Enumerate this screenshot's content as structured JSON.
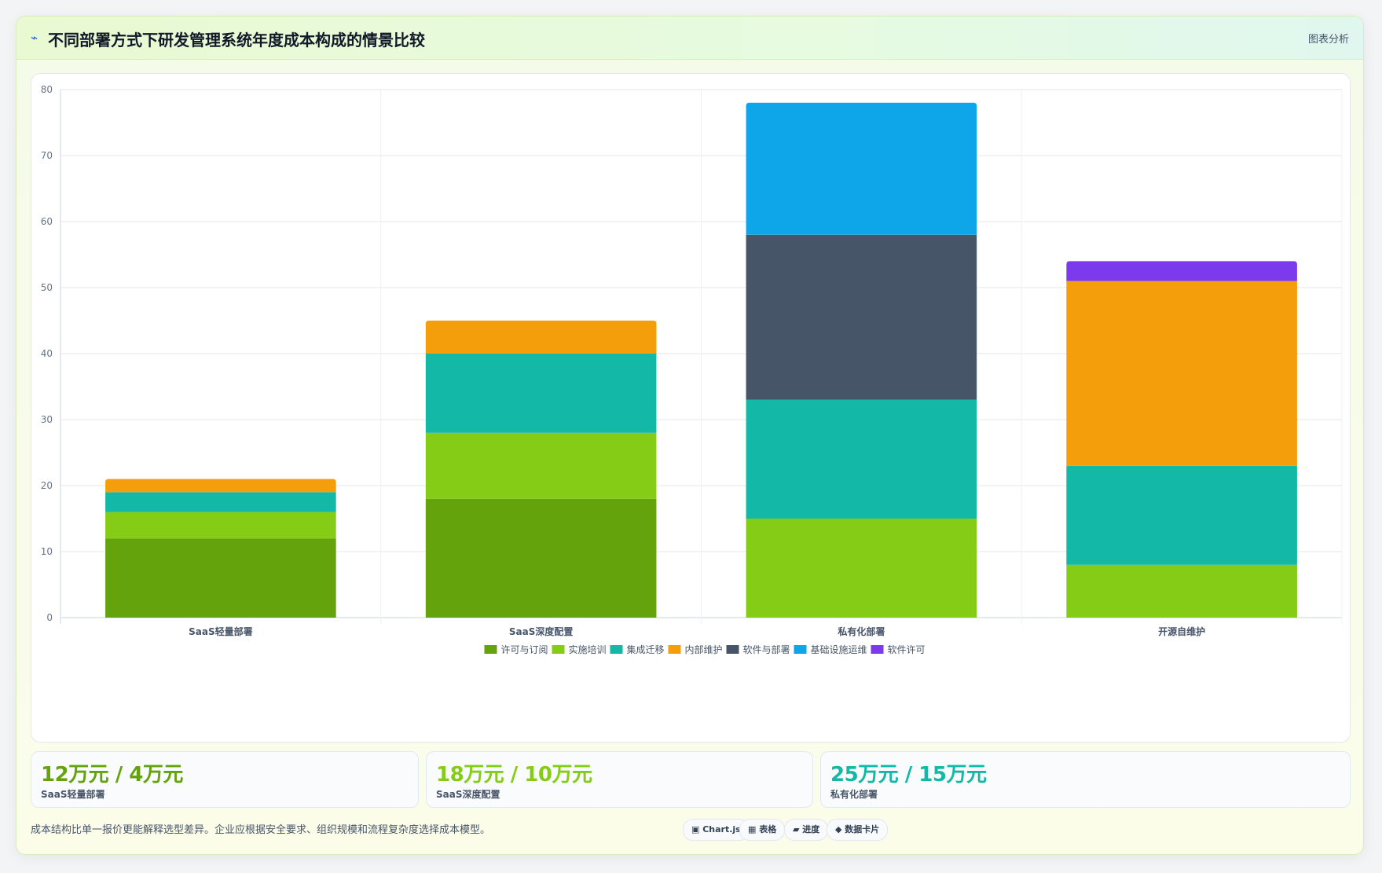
{
  "header": {
    "icon": "lightning-icon",
    "title": "不同部署方式下研发管理系统年度成本构成的情景比较",
    "tag": "图表分析"
  },
  "chart_data": {
    "type": "bar",
    "stacked": true,
    "categories": [
      "SaaS轻量部署",
      "SaaS深度配置",
      "私有化部署",
      "开源自维护"
    ],
    "ylim": [
      0,
      80
    ],
    "yticks": [
      0,
      10,
      20,
      30,
      40,
      50,
      60,
      70,
      80
    ],
    "grid": true,
    "legend": "bottom",
    "series": [
      {
        "name": "许可与订阅",
        "color": "#65a30d",
        "values": [
          12,
          18,
          0,
          0
        ]
      },
      {
        "name": "实施培训",
        "color": "#84cc16",
        "values": [
          4,
          10,
          15,
          8
        ]
      },
      {
        "name": "集成迁移",
        "color": "#14b8a6",
        "values": [
          3,
          12,
          18,
          15
        ]
      },
      {
        "name": "内部维护",
        "color": "#f59e0b",
        "values": [
          2,
          5,
          0,
          28
        ]
      },
      {
        "name": "软件与部署",
        "color": "#475569",
        "values": [
          0,
          0,
          25,
          0
        ]
      },
      {
        "name": "基础设施运维",
        "color": "#0ea5e9",
        "values": [
          0,
          0,
          20,
          0
        ]
      },
      {
        "name": "软件许可",
        "color": "#7c3aed",
        "values": [
          0,
          0,
          0,
          3
        ]
      }
    ]
  },
  "kpis": [
    {
      "value": "12万元 / 4万元",
      "label": "SaaS轻量部署",
      "color": "#65a30d"
    },
    {
      "value": "18万元 / 10万元",
      "label": "SaaS深度配置",
      "color": "#84cc16"
    },
    {
      "value": "25万元 / 15万元",
      "label": "私有化部署",
      "color": "#14b8a6"
    }
  ],
  "footer": {
    "note": "成本结构比单一报价更能解释选型差异。企业应根据安全要求、组织规模和流程复杂度选择成本模型。",
    "pills": [
      "▣ Chart.js",
      "▦ 表格",
      "▰ 进度",
      "◆ 数据卡片"
    ]
  }
}
